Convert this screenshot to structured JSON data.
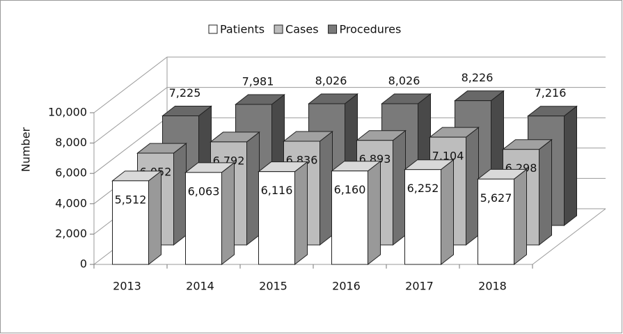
{
  "chart_data": {
    "type": "bar",
    "y_label": "Number",
    "categories": [
      "2013",
      "2014",
      "2015",
      "2016",
      "2017",
      "2018"
    ],
    "series": [
      {
        "name": "Patients",
        "color": "#ffffff",
        "values": [
          5512,
          6063,
          6116,
          6160,
          6252,
          5627
        ],
        "value_labels": [
          "5,512",
          "6,063",
          "6,116",
          "6,160",
          "6,252",
          "5,627"
        ]
      },
      {
        "name": "Cases",
        "color": "#bdbdbd",
        "values": [
          6052,
          6792,
          6836,
          6893,
          7104,
          6298
        ],
        "value_labels": [
          "6,052",
          "6,792",
          "6,836",
          "6,893",
          "7,104",
          "6,298"
        ]
      },
      {
        "name": "Procedures",
        "color": "#7a7a7a",
        "values": [
          7225,
          7981,
          8026,
          8026,
          8226,
          7216
        ],
        "value_labels": [
          "7,225",
          "7,981",
          "8,026",
          "8,026",
          "8,226",
          "7,216"
        ]
      }
    ],
    "ylim": [
      0,
      10000
    ],
    "yticks": [
      0,
      {
        "value": 2000,
        "label": "2,000"
      },
      {
        "value": 4000,
        "label": "4,000"
      },
      {
        "value": 6000,
        "label": "6,000"
      },
      {
        "value": 8000,
        "label": "8,000"
      },
      {
        "value": 10000,
        "label": "10,000"
      }
    ],
    "grid": true,
    "legend": "top"
  }
}
